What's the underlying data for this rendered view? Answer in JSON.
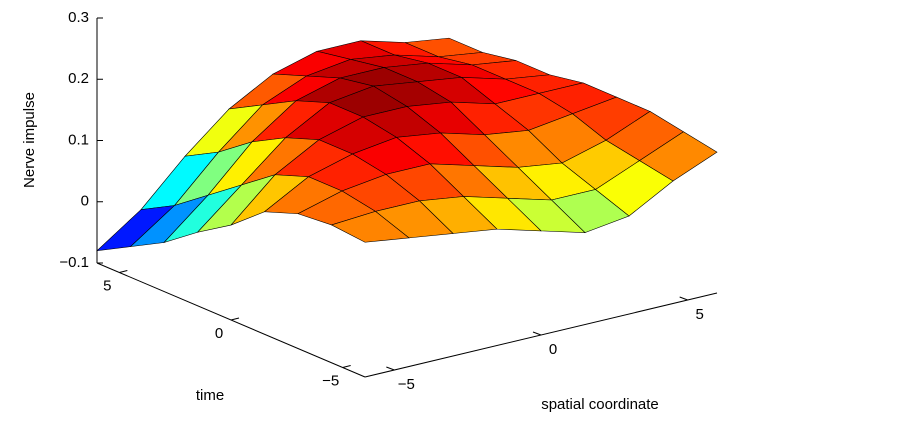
{
  "chart_data": {
    "type": "surface",
    "xlabel": "spatial coordinate",
    "ylabel": "time",
    "zlabel": "Nerve impulse",
    "x": [
      -6,
      -4.5,
      -3,
      -1.5,
      0,
      1.5,
      3,
      4.5,
      6
    ],
    "y": [
      -6,
      -4.5,
      -3,
      -1.5,
      0,
      1.5,
      3,
      4.5,
      6
    ],
    "z": [
      [
        0.12,
        0.11,
        0.1,
        0.09,
        0.07,
        0.05,
        0.06,
        0.1,
        0.13
      ],
      [
        0.125,
        0.13,
        0.13,
        0.12,
        0.1,
        0.08,
        0.08,
        0.11,
        0.14
      ],
      [
        0.12,
        0.14,
        0.15,
        0.15,
        0.13,
        0.11,
        0.1,
        0.12,
        0.15
      ],
      [
        0.1,
        0.14,
        0.16,
        0.17,
        0.16,
        0.14,
        0.13,
        0.14,
        0.15
      ],
      [
        0.055,
        0.12,
        0.16,
        0.18,
        0.18,
        0.17,
        0.15,
        0.15,
        0.15
      ],
      [
        0.02,
        0.08,
        0.14,
        0.18,
        0.19,
        0.18,
        0.17,
        0.15,
        0.14
      ],
      [
        -0.02,
        0.04,
        0.11,
        0.16,
        0.18,
        0.18,
        0.17,
        0.15,
        0.14
      ],
      [
        -0.05,
        0.0,
        0.07,
        0.13,
        0.16,
        0.17,
        0.16,
        0.14,
        0.13
      ],
      [
        -0.08,
        -0.03,
        0.04,
        0.1,
        0.14,
        0.16,
        0.16,
        0.14,
        0.13
      ]
    ],
    "xlim": [
      -6,
      6
    ],
    "ylim": [
      -6,
      6
    ],
    "zlim": [
      -0.1,
      0.3
    ],
    "xticks": [
      {
        "value": -5,
        "label": "−5"
      },
      0,
      5
    ],
    "yticks": [
      {
        "value": -5,
        "label": "−5"
      },
      0,
      5
    ],
    "zticks": [
      {
        "value": -0.1,
        "label": "−0.1"
      },
      0,
      0.1,
      0.2,
      0.3
    ],
    "colormap": "jet",
    "edgecolor": "#000000"
  }
}
